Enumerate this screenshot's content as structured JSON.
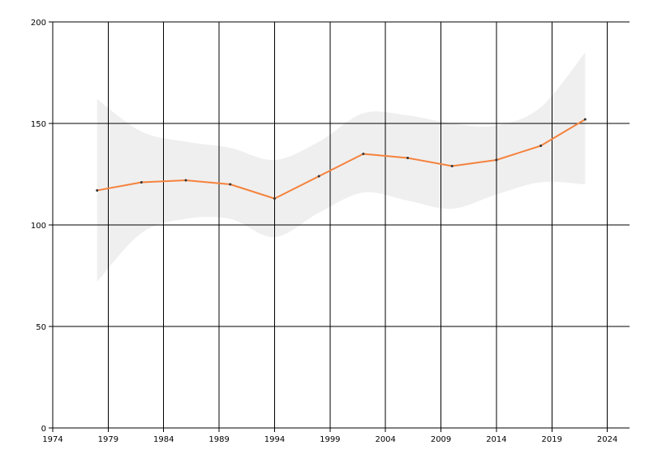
{
  "chart_data": {
    "type": "line",
    "title": "",
    "xlabel": "",
    "ylabel": "",
    "xlim": [
      1974,
      2026
    ],
    "ylim": [
      0,
      200
    ],
    "x_ticks": [
      1974,
      1979,
      1984,
      1989,
      1994,
      1999,
      2004,
      2009,
      2014,
      2019,
      2024
    ],
    "y_ticks": [
      0,
      50,
      100,
      150,
      200
    ],
    "grid": true,
    "legend": "none",
    "colors": {
      "line": "#f5823c",
      "band": "#efefef",
      "marker": "#333333",
      "grid": "#000000"
    },
    "series": [
      {
        "x": [
          1978,
          1982,
          1986,
          1990,
          1994,
          1998,
          2002,
          2006,
          2010,
          2014,
          2018,
          2022
        ],
        "values": [
          117,
          121,
          122,
          120,
          113,
          124,
          135,
          133,
          129,
          132,
          139,
          152
        ],
        "upper": [
          162,
          146,
          141,
          138,
          132,
          141,
          155,
          154,
          150,
          149,
          158,
          185
        ],
        "lower": [
          72,
          96,
          103,
          103,
          94,
          106,
          116,
          112,
          108,
          115,
          121,
          120
        ]
      }
    ]
  }
}
